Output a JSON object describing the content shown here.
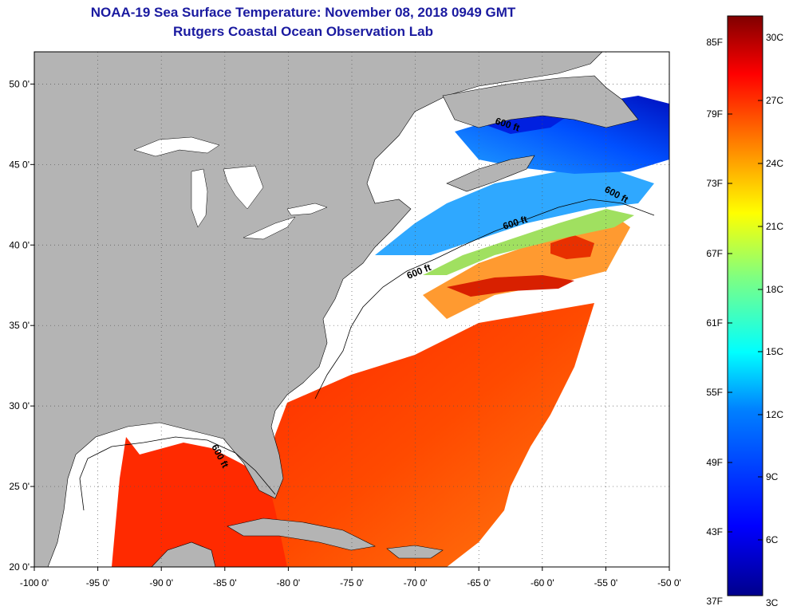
{
  "title": "NOAA-19 Sea Surface Temperature:  November 08, 2018 0949 GMT",
  "subtitle": "Rutgers Coastal Ocean Observation Lab",
  "map": {
    "lon_range": [
      -100,
      -50
    ],
    "lat_range": [
      20,
      52
    ],
    "lon_ticks": [
      "-100 0'",
      "-95 0'",
      "-90 0'",
      "-85 0'",
      "-80 0'",
      "-75 0'",
      "-70 0'",
      "-65 0'",
      "-60 0'",
      "-55 0'",
      "-50 0'"
    ],
    "lat_ticks": [
      "20 0'",
      "25 0'",
      "30 0'",
      "35 0'",
      "40 0'",
      "45 0'",
      "50 0'"
    ],
    "contour_labels": [
      "600 ft",
      "600 ft",
      "600 ft",
      "600 ft",
      "600 ft"
    ],
    "colors": {
      "land": "#b4b4b4",
      "no_data": "#ffffff",
      "grid": "#666666"
    }
  },
  "colorbar": {
    "fahrenheit_labels": [
      "85F",
      "79F",
      "73F",
      "67F",
      "61F",
      "55F",
      "49F",
      "43F",
      "37F"
    ],
    "celsius_labels": [
      "30C",
      "27C",
      "24C",
      "21C",
      "18C",
      "15C",
      "12C",
      "9C",
      "6C",
      "3C"
    ],
    "colors": [
      "#00008c",
      "#0000ff",
      "#0080ff",
      "#00ffff",
      "#80ff80",
      "#ffff00",
      "#ff8000",
      "#ff0000",
      "#800000"
    ]
  }
}
